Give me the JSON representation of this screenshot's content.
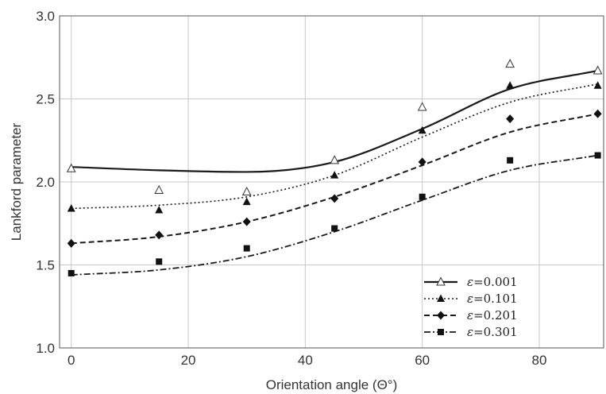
{
  "chart_data": {
    "type": "line",
    "xlabel": "Orientation angle (Θ°)",
    "ylabel": "Lankford  parameter",
    "xlim": [
      -2,
      91
    ],
    "ylim": [
      1.0,
      3.0
    ],
    "x_ticks": [
      "0",
      "20",
      "40",
      "60",
      "80"
    ],
    "x_tick_values": [
      0,
      20,
      40,
      60,
      80
    ],
    "y_ticks": [
      "1.0",
      "1.5",
      "2.0",
      "2.5",
      "3.0"
    ],
    "y_tick_values": [
      1.0,
      1.5,
      2.0,
      2.5,
      3.0
    ],
    "grid": true,
    "legend_position": "bottom-right",
    "series": [
      {
        "name": "=0.001",
        "name_prefix": "ε",
        "line_style": "solid",
        "marker": "open-triangle",
        "points": {
          "x": [
            0,
            15,
            30,
            45,
            60,
            75,
            90
          ],
          "y": [
            2.08,
            1.95,
            1.94,
            2.13,
            2.45,
            2.71,
            2.67
          ]
        },
        "fit": {
          "x": [
            0,
            15,
            30,
            45,
            60,
            75,
            90
          ],
          "y": [
            2.09,
            2.07,
            2.06,
            2.12,
            2.32,
            2.56,
            2.67
          ]
        }
      },
      {
        "name": "=0.101",
        "name_prefix": "ε",
        "line_style": "dotted",
        "marker": "filled-triangle",
        "points": {
          "x": [
            0,
            15,
            30,
            45,
            60,
            75,
            90
          ],
          "y": [
            1.84,
            1.83,
            1.88,
            2.04,
            2.31,
            2.58,
            2.58
          ]
        },
        "fit": {
          "x": [
            0,
            15,
            30,
            45,
            60,
            75,
            90
          ],
          "y": [
            1.84,
            1.86,
            1.91,
            2.04,
            2.27,
            2.48,
            2.59
          ]
        }
      },
      {
        "name": "=0.201",
        "name_prefix": "ε",
        "line_style": "dashed",
        "marker": "filled-diamond",
        "points": {
          "x": [
            0,
            15,
            30,
            45,
            60,
            75,
            90
          ],
          "y": [
            1.63,
            1.68,
            1.76,
            1.9,
            2.12,
            2.38,
            2.41
          ]
        },
        "fit": {
          "x": [
            0,
            15,
            30,
            45,
            60,
            75,
            90
          ],
          "y": [
            1.63,
            1.67,
            1.76,
            1.91,
            2.1,
            2.3,
            2.41
          ]
        }
      },
      {
        "name": "=0.301",
        "name_prefix": "ε",
        "line_style": "dash-dot",
        "marker": "filled-square",
        "points": {
          "x": [
            0,
            15,
            30,
            45,
            60,
            75,
            90
          ],
          "y": [
            1.45,
            1.52,
            1.6,
            1.72,
            1.91,
            2.13,
            2.16
          ]
        },
        "fit": {
          "x": [
            0,
            15,
            30,
            45,
            60,
            75,
            90
          ],
          "y": [
            1.44,
            1.47,
            1.55,
            1.7,
            1.89,
            2.07,
            2.16
          ]
        }
      }
    ]
  }
}
